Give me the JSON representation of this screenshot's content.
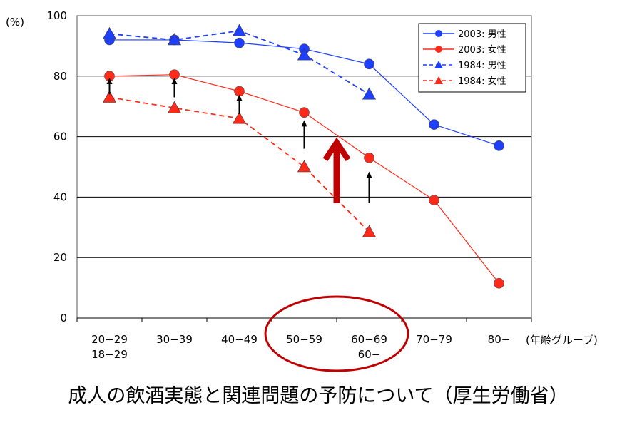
{
  "chart_data": {
    "type": "line",
    "ylabel": "(%)",
    "xlabel": "(年齢グループ)",
    "ylim": [
      0,
      100
    ],
    "yticks": [
      0,
      20,
      40,
      60,
      80,
      100
    ],
    "categories": [
      "20-29",
      "30-39",
      "40-49",
      "50-59",
      "60-69",
      "70-79",
      "80-"
    ],
    "categories_1984": [
      "18-29",
      "",
      "",
      "",
      "60-",
      "",
      ""
    ],
    "grid": true,
    "legend_position": "top-right",
    "series": [
      {
        "name": "2003: 男性",
        "color": "#1f3fff",
        "marker": "circle",
        "dash": "solid",
        "values": [
          92,
          92,
          91,
          89,
          84,
          64,
          57
        ]
      },
      {
        "name": "2003: 女性",
        "color": "#ff2a1a",
        "marker": "circle",
        "dash": "solid",
        "values": [
          80,
          80.5,
          75,
          68,
          53,
          39,
          11.5
        ]
      },
      {
        "name": "1984: 男性",
        "color": "#1f3fff",
        "marker": "triangle",
        "dash": "dashed",
        "values": [
          94,
          92,
          95,
          87,
          74,
          null,
          null
        ]
      },
      {
        "name": "1984: 女性",
        "color": "#ff2a1a",
        "marker": "triangle",
        "dash": "dashed",
        "values": [
          73,
          69.5,
          66,
          50,
          28.5,
          null,
          null
        ]
      }
    ],
    "annotations": {
      "small_arrows": [
        {
          "category": "20-29",
          "from": 74,
          "to": 79
        },
        {
          "category": "30-39",
          "from": 73,
          "to": 79
        },
        {
          "category": "40-49",
          "from": 67.5,
          "to": 73.5
        },
        {
          "category": "50-59",
          "from": 56,
          "to": 65
        },
        {
          "category": "60-69",
          "from": 38,
          "to": 48
        }
      ],
      "big_arrow": {
        "category_between": [
          "50-59",
          "60-69"
        ],
        "from": 38,
        "to": 59,
        "color": "#c00000"
      },
      "highlight_ellipse": {
        "categories": [
          "50-59",
          "60-69"
        ],
        "color": "#c00000"
      }
    }
  },
  "caption": "成人の飲酒実態と関連問題の予防について（厚生労働省）"
}
